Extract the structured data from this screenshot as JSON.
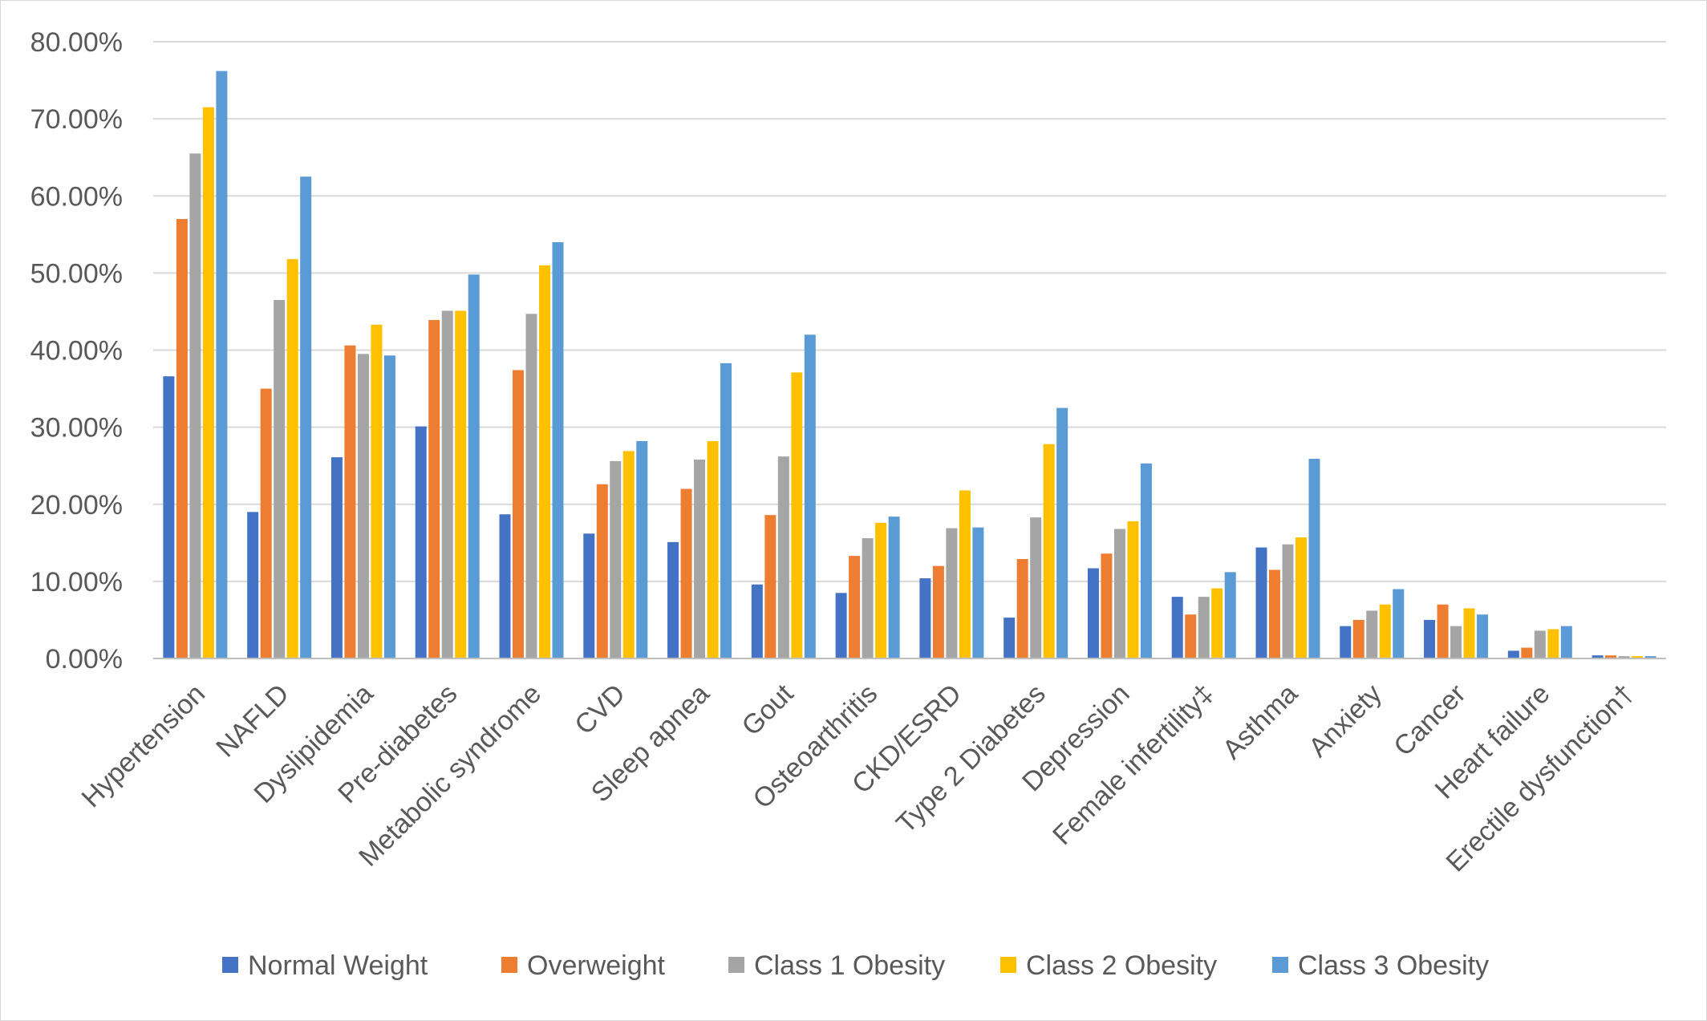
{
  "chart_data": {
    "type": "bar",
    "title": "",
    "xlabel": "",
    "ylabel": "",
    "ylim": [
      0,
      0.8
    ],
    "ytick_values": [
      0,
      0.1,
      0.2,
      0.3,
      0.4,
      0.5,
      0.6,
      0.7,
      0.8
    ],
    "ytick_labels": [
      "0.00%",
      "10.00%",
      "20.00%",
      "30.00%",
      "40.00%",
      "50.00%",
      "60.00%",
      "70.00%",
      "80.00%"
    ],
    "grid": true,
    "legend_position": "bottom",
    "categories": [
      "Hypertension",
      "NAFLD",
      "Dyslipidemia",
      "Pre-diabetes",
      "Metabolic  syndrome",
      "CVD",
      "Sleep apnea",
      "Gout",
      "Osteoarthritis",
      "CKD/ESRD",
      "Type 2 Diabetes",
      "Depression",
      "Female infertility‡",
      "Asthma",
      "Anxiety",
      "Cancer",
      "Heart failure",
      "Erectile dysfunction†"
    ],
    "series": [
      {
        "name": "Normal Weight",
        "color": "#4472C4",
        "values": [
          0.366,
          0.19,
          0.261,
          0.301,
          0.187,
          0.162,
          0.151,
          0.096,
          0.085,
          0.104,
          0.053,
          0.117,
          0.08,
          0.144,
          0.042,
          0.05,
          0.01,
          0.004
        ]
      },
      {
        "name": "Overweight",
        "color": "#ED7D31",
        "values": [
          0.57,
          0.35,
          0.406,
          0.439,
          0.374,
          0.226,
          0.22,
          0.186,
          0.133,
          0.12,
          0.129,
          0.136,
          0.057,
          0.115,
          0.05,
          0.07,
          0.014,
          0.004
        ]
      },
      {
        "name": "Class 1 Obesity",
        "color": "#A5A5A5",
        "values": [
          0.655,
          0.465,
          0.395,
          0.451,
          0.447,
          0.256,
          0.258,
          0.262,
          0.156,
          0.169,
          0.183,
          0.168,
          0.08,
          0.148,
          0.062,
          0.042,
          0.036,
          0.003
        ]
      },
      {
        "name": "Class 2 Obesity",
        "color": "#FFC000",
        "values": [
          0.715,
          0.518,
          0.433,
          0.451,
          0.51,
          0.269,
          0.282,
          0.371,
          0.176,
          0.218,
          0.278,
          0.178,
          0.091,
          0.157,
          0.07,
          0.065,
          0.038,
          0.003
        ]
      },
      {
        "name": "Class 3 Obesity",
        "color": "#5B9BD5",
        "values": [
          0.762,
          0.625,
          0.393,
          0.498,
          0.54,
          0.282,
          0.383,
          0.42,
          0.184,
          0.17,
          0.325,
          0.253,
          0.112,
          0.259,
          0.09,
          0.057,
          0.042,
          0.003
        ]
      }
    ]
  },
  "colors": {
    "gridline": "#d9d9d9",
    "axis_line": "#bfbfbf",
    "text": "#595959",
    "frame": "#d9d9d9"
  }
}
